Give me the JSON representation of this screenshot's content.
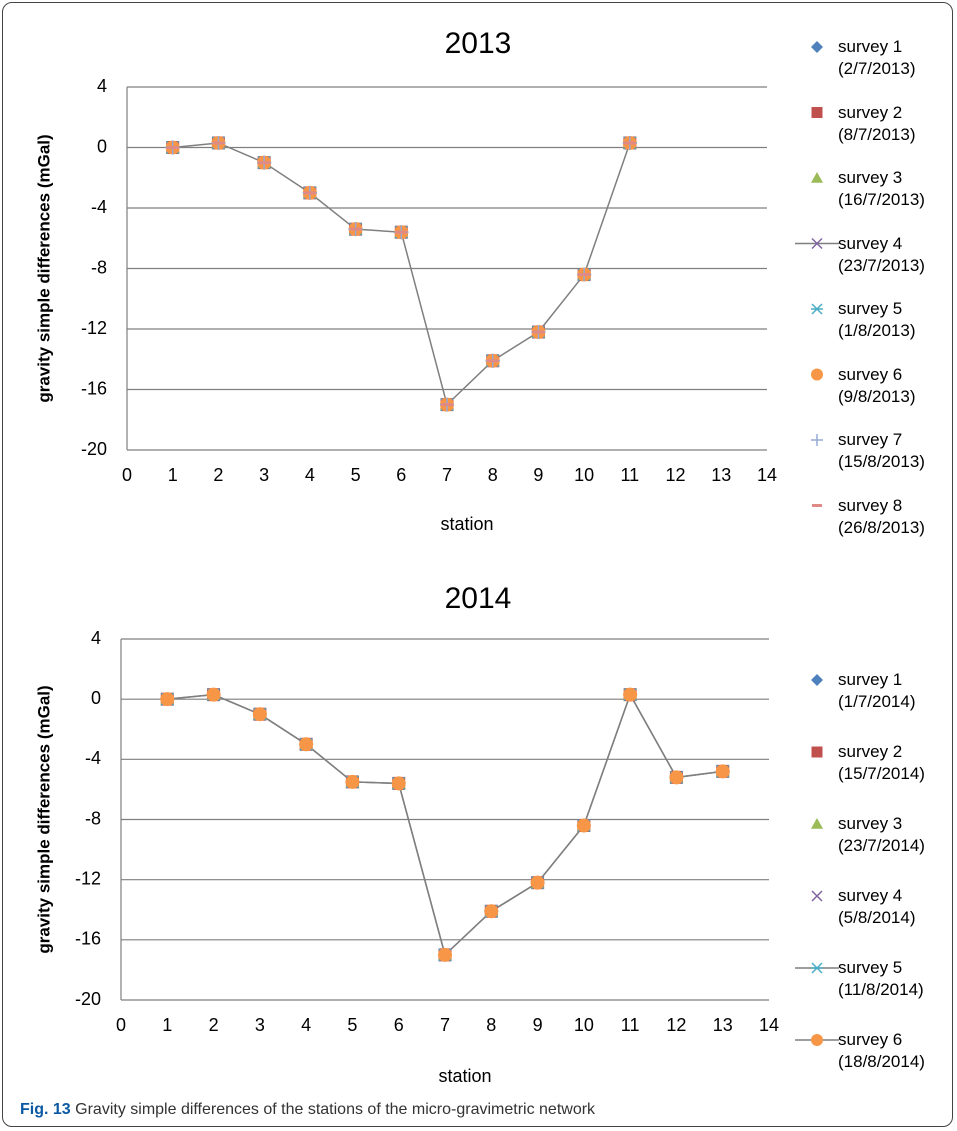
{
  "chart_data": [
    {
      "type": "line",
      "title": "2013",
      "x_label": "station",
      "y_label": "gravity simple differences (mGal)",
      "x": [
        1,
        2,
        3,
        4,
        5,
        6,
        7,
        8,
        9,
        10,
        11
      ],
      "xlim": [
        0,
        14
      ],
      "xticks": [
        0,
        1,
        2,
        3,
        4,
        5,
        6,
        7,
        8,
        9,
        10,
        11,
        12,
        13,
        14
      ],
      "ylim": [
        -20,
        4
      ],
      "yticks": [
        -20,
        -16,
        -12,
        -8,
        -4,
        0,
        4
      ],
      "grid": true,
      "line_color": "#7f7f7f",
      "series": [
        {
          "name": "survey 1 (2/7/2013)",
          "color": "#4f81bd",
          "marker": "diamond",
          "line": false,
          "values": [
            0,
            0.3,
            -1,
            -3,
            -5.4,
            -5.6,
            -17,
            -14.1,
            -12.2,
            -8.4,
            0.3
          ]
        },
        {
          "name": "survey 2 (8/7/2013)",
          "color": "#c0504d",
          "marker": "square",
          "line": false,
          "values": [
            0,
            0.3,
            -1,
            -3,
            -5.4,
            -5.6,
            -17,
            -14.1,
            -12.2,
            -8.4,
            0.3
          ]
        },
        {
          "name": "survey 3 (16/7/2013)",
          "color": "#9bbb59",
          "marker": "triangle",
          "line": false,
          "values": [
            0,
            0.3,
            -1,
            -3,
            -5.4,
            -5.6,
            -17,
            -14.1,
            -12.2,
            -8.4,
            0.3
          ]
        },
        {
          "name": "survey 4 (23/7/2013)",
          "color": "#8064a2",
          "marker": "x",
          "line": true,
          "values": [
            0,
            0.3,
            -1,
            -3,
            -5.4,
            -5.6,
            -17,
            -14.1,
            -12.2,
            -8.4,
            0.3
          ]
        },
        {
          "name": "survey 5 (1/8/2013)",
          "color": "#4bacc6",
          "marker": "asterisk",
          "line": false,
          "values": [
            0,
            0.3,
            -1,
            -3,
            -5.4,
            -5.6,
            -17,
            -14.1,
            -12.2,
            -8.4,
            0.3
          ]
        },
        {
          "name": "survey 6 (9/8/2013)",
          "color": "#f79646",
          "marker": "circle",
          "line": false,
          "values": [
            0,
            0.3,
            -1,
            -3,
            -5.4,
            -5.6,
            -17,
            -14.1,
            -12.2,
            -8.4,
            0.3
          ]
        },
        {
          "name": "survey 7 (15/8/2013)",
          "color": "#95a8d7",
          "marker": "plus",
          "line": false,
          "values": [
            0,
            0.3,
            -1,
            -3,
            -5.4,
            -5.6,
            -17,
            -14.1,
            -12.2,
            -8.4,
            0.3
          ]
        },
        {
          "name": "survey 8 (26/8/2013)",
          "color": "#e08a86",
          "marker": "dash",
          "line": false,
          "values": [
            0,
            0.3,
            -1,
            -3,
            -5.4,
            -5.6,
            -17,
            -14.1,
            -12.2,
            -8.4,
            0.3
          ]
        }
      ]
    },
    {
      "type": "line",
      "title": "2014",
      "x_label": "station",
      "y_label": "gravity simple differences (mGal)",
      "x": [
        1,
        2,
        3,
        4,
        5,
        6,
        7,
        8,
        9,
        10,
        11,
        12,
        13
      ],
      "xlim": [
        0,
        14
      ],
      "xticks": [
        0,
        1,
        2,
        3,
        4,
        5,
        6,
        7,
        8,
        9,
        10,
        11,
        12,
        13,
        14
      ],
      "ylim": [
        -20,
        4
      ],
      "yticks": [
        -20,
        -16,
        -12,
        -8,
        -4,
        0,
        4
      ],
      "grid": true,
      "line_color": "#7f7f7f",
      "series": [
        {
          "name": "survey 1 (1/7/2014)",
          "color": "#4f81bd",
          "marker": "diamond",
          "line": false,
          "values": [
            0,
            0.3,
            -1,
            -3,
            -5.5,
            -5.6,
            -17,
            -14.1,
            -12.2,
            -8.4,
            0.3,
            -5.2,
            -4.8
          ]
        },
        {
          "name": "survey 2 (15/7/2014)",
          "color": "#c0504d",
          "marker": "square",
          "line": false,
          "values": [
            0,
            0.3,
            -1,
            -3,
            -5.5,
            -5.6,
            -17,
            -14.1,
            -12.2,
            -8.4,
            0.3,
            -5.2,
            -4.8
          ]
        },
        {
          "name": "survey 3 (23/7/2014)",
          "color": "#9bbb59",
          "marker": "triangle",
          "line": false,
          "values": [
            0,
            0.3,
            -1,
            -3,
            -5.5,
            -5.6,
            -17,
            -14.1,
            -12.2,
            -8.4,
            0.3,
            -5.2,
            -4.8
          ]
        },
        {
          "name": "survey 4 (5/8/2014)",
          "color": "#8064a2",
          "marker": "x",
          "line": false,
          "values": [
            0,
            0.3,
            -1,
            -3,
            -5.5,
            -5.6,
            -17,
            -14.1,
            -12.2,
            -8.4,
            0.3,
            -5.2,
            -4.8
          ]
        },
        {
          "name": "survey 5 (11/8/2014)",
          "color": "#4bacc6",
          "marker": "asterisk",
          "line": true,
          "values": [
            0,
            0.3,
            -1,
            -3,
            -5.5,
            -5.6,
            -17,
            -14.1,
            -12.2,
            -8.4,
            0.3,
            -5.2,
            -4.8
          ]
        },
        {
          "name": "survey 6 (18/8/2014)",
          "color": "#f79646",
          "marker": "circle",
          "line": true,
          "values": [
            0,
            0.3,
            -1,
            -3,
            -5.5,
            -5.6,
            -17,
            -14.1,
            -12.2,
            -8.4,
            0.3,
            -5.2,
            -4.8
          ]
        }
      ]
    }
  ],
  "caption": {
    "label": "Fig. 13",
    "text": "Gravity simple differences of the stations of the micro-gravimetric network"
  }
}
